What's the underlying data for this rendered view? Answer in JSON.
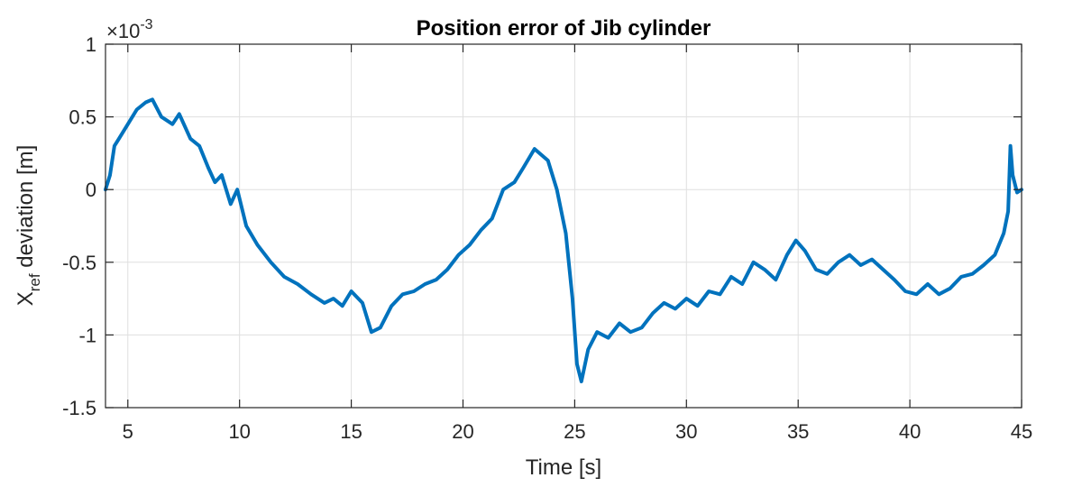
{
  "chart_data": {
    "type": "line",
    "title": "Position error of Jib cylinder",
    "xlabel": "Time [s]",
    "ylabel_main": "X",
    "ylabel_sub": "ref",
    "ylabel_rest": " deviation [m]",
    "y_multiplier_base": "×10",
    "y_multiplier_exp": "-3",
    "xlim": [
      4,
      45
    ],
    "ylim": [
      -1.5,
      1
    ],
    "xticks": [
      5,
      10,
      15,
      20,
      25,
      30,
      35,
      40,
      45
    ],
    "xtick_labels": [
      "5",
      "10",
      "15",
      "20",
      "25",
      "30",
      "35",
      "40",
      "45"
    ],
    "yticks": [
      -1.5,
      -1,
      -0.5,
      0,
      0.5,
      1
    ],
    "ytick_labels": [
      "-1.5",
      "-1",
      "-0.5",
      "0",
      "0.5",
      "1"
    ],
    "grid": true,
    "line_color": "#0072BD",
    "series": [
      {
        "x": [
          4.0,
          4.2,
          4.4,
          4.6,
          5.0,
          5.4,
          5.8,
          6.1,
          6.5,
          7.0,
          7.3,
          7.8,
          8.2,
          8.6,
          8.9,
          9.2,
          9.6,
          9.9,
          10.3,
          10.8,
          11.4,
          12.0,
          12.6,
          13.2,
          13.8,
          14.2,
          14.6,
          15.0,
          15.5,
          15.9,
          16.3,
          16.8,
          17.3,
          17.8,
          18.3,
          18.8,
          19.3,
          19.8,
          20.3,
          20.8,
          21.3,
          21.8,
          22.3,
          22.7,
          23.2,
          23.8,
          24.2,
          24.6,
          24.9,
          25.1,
          25.3,
          25.6,
          26.0,
          26.5,
          27.0,
          27.5,
          28.0,
          28.5,
          29.0,
          29.5,
          30.0,
          30.5,
          31.0,
          31.5,
          32.0,
          32.5,
          33.0,
          33.5,
          34.0,
          34.5,
          34.9,
          35.3,
          35.8,
          36.3,
          36.8,
          37.3,
          37.8,
          38.3,
          38.8,
          39.3,
          39.8,
          40.3,
          40.8,
          41.3,
          41.8,
          42.3,
          42.8,
          43.3,
          43.8,
          44.2,
          44.4,
          44.5,
          44.6,
          44.8,
          45.0
        ],
        "y": [
          0.0,
          0.1,
          0.3,
          0.35,
          0.45,
          0.55,
          0.6,
          0.62,
          0.5,
          0.45,
          0.52,
          0.35,
          0.3,
          0.15,
          0.05,
          0.1,
          -0.1,
          0.0,
          -0.25,
          -0.38,
          -0.5,
          -0.6,
          -0.65,
          -0.72,
          -0.78,
          -0.75,
          -0.8,
          -0.7,
          -0.78,
          -0.98,
          -0.95,
          -0.8,
          -0.72,
          -0.7,
          -0.65,
          -0.62,
          -0.55,
          -0.45,
          -0.38,
          -0.28,
          -0.2,
          0.0,
          0.05,
          0.15,
          0.28,
          0.2,
          0.0,
          -0.3,
          -0.75,
          -1.2,
          -1.32,
          -1.1,
          -0.98,
          -1.02,
          -0.92,
          -0.98,
          -0.95,
          -0.85,
          -0.78,
          -0.82,
          -0.75,
          -0.8,
          -0.7,
          -0.72,
          -0.6,
          -0.65,
          -0.5,
          -0.55,
          -0.62,
          -0.45,
          -0.35,
          -0.42,
          -0.55,
          -0.58,
          -0.5,
          -0.45,
          -0.52,
          -0.48,
          -0.55,
          -0.62,
          -0.7,
          -0.72,
          -0.65,
          -0.72,
          -0.68,
          -0.6,
          -0.58,
          -0.52,
          -0.45,
          -0.3,
          -0.15,
          0.3,
          0.1,
          -0.02,
          0.0
        ]
      }
    ]
  }
}
